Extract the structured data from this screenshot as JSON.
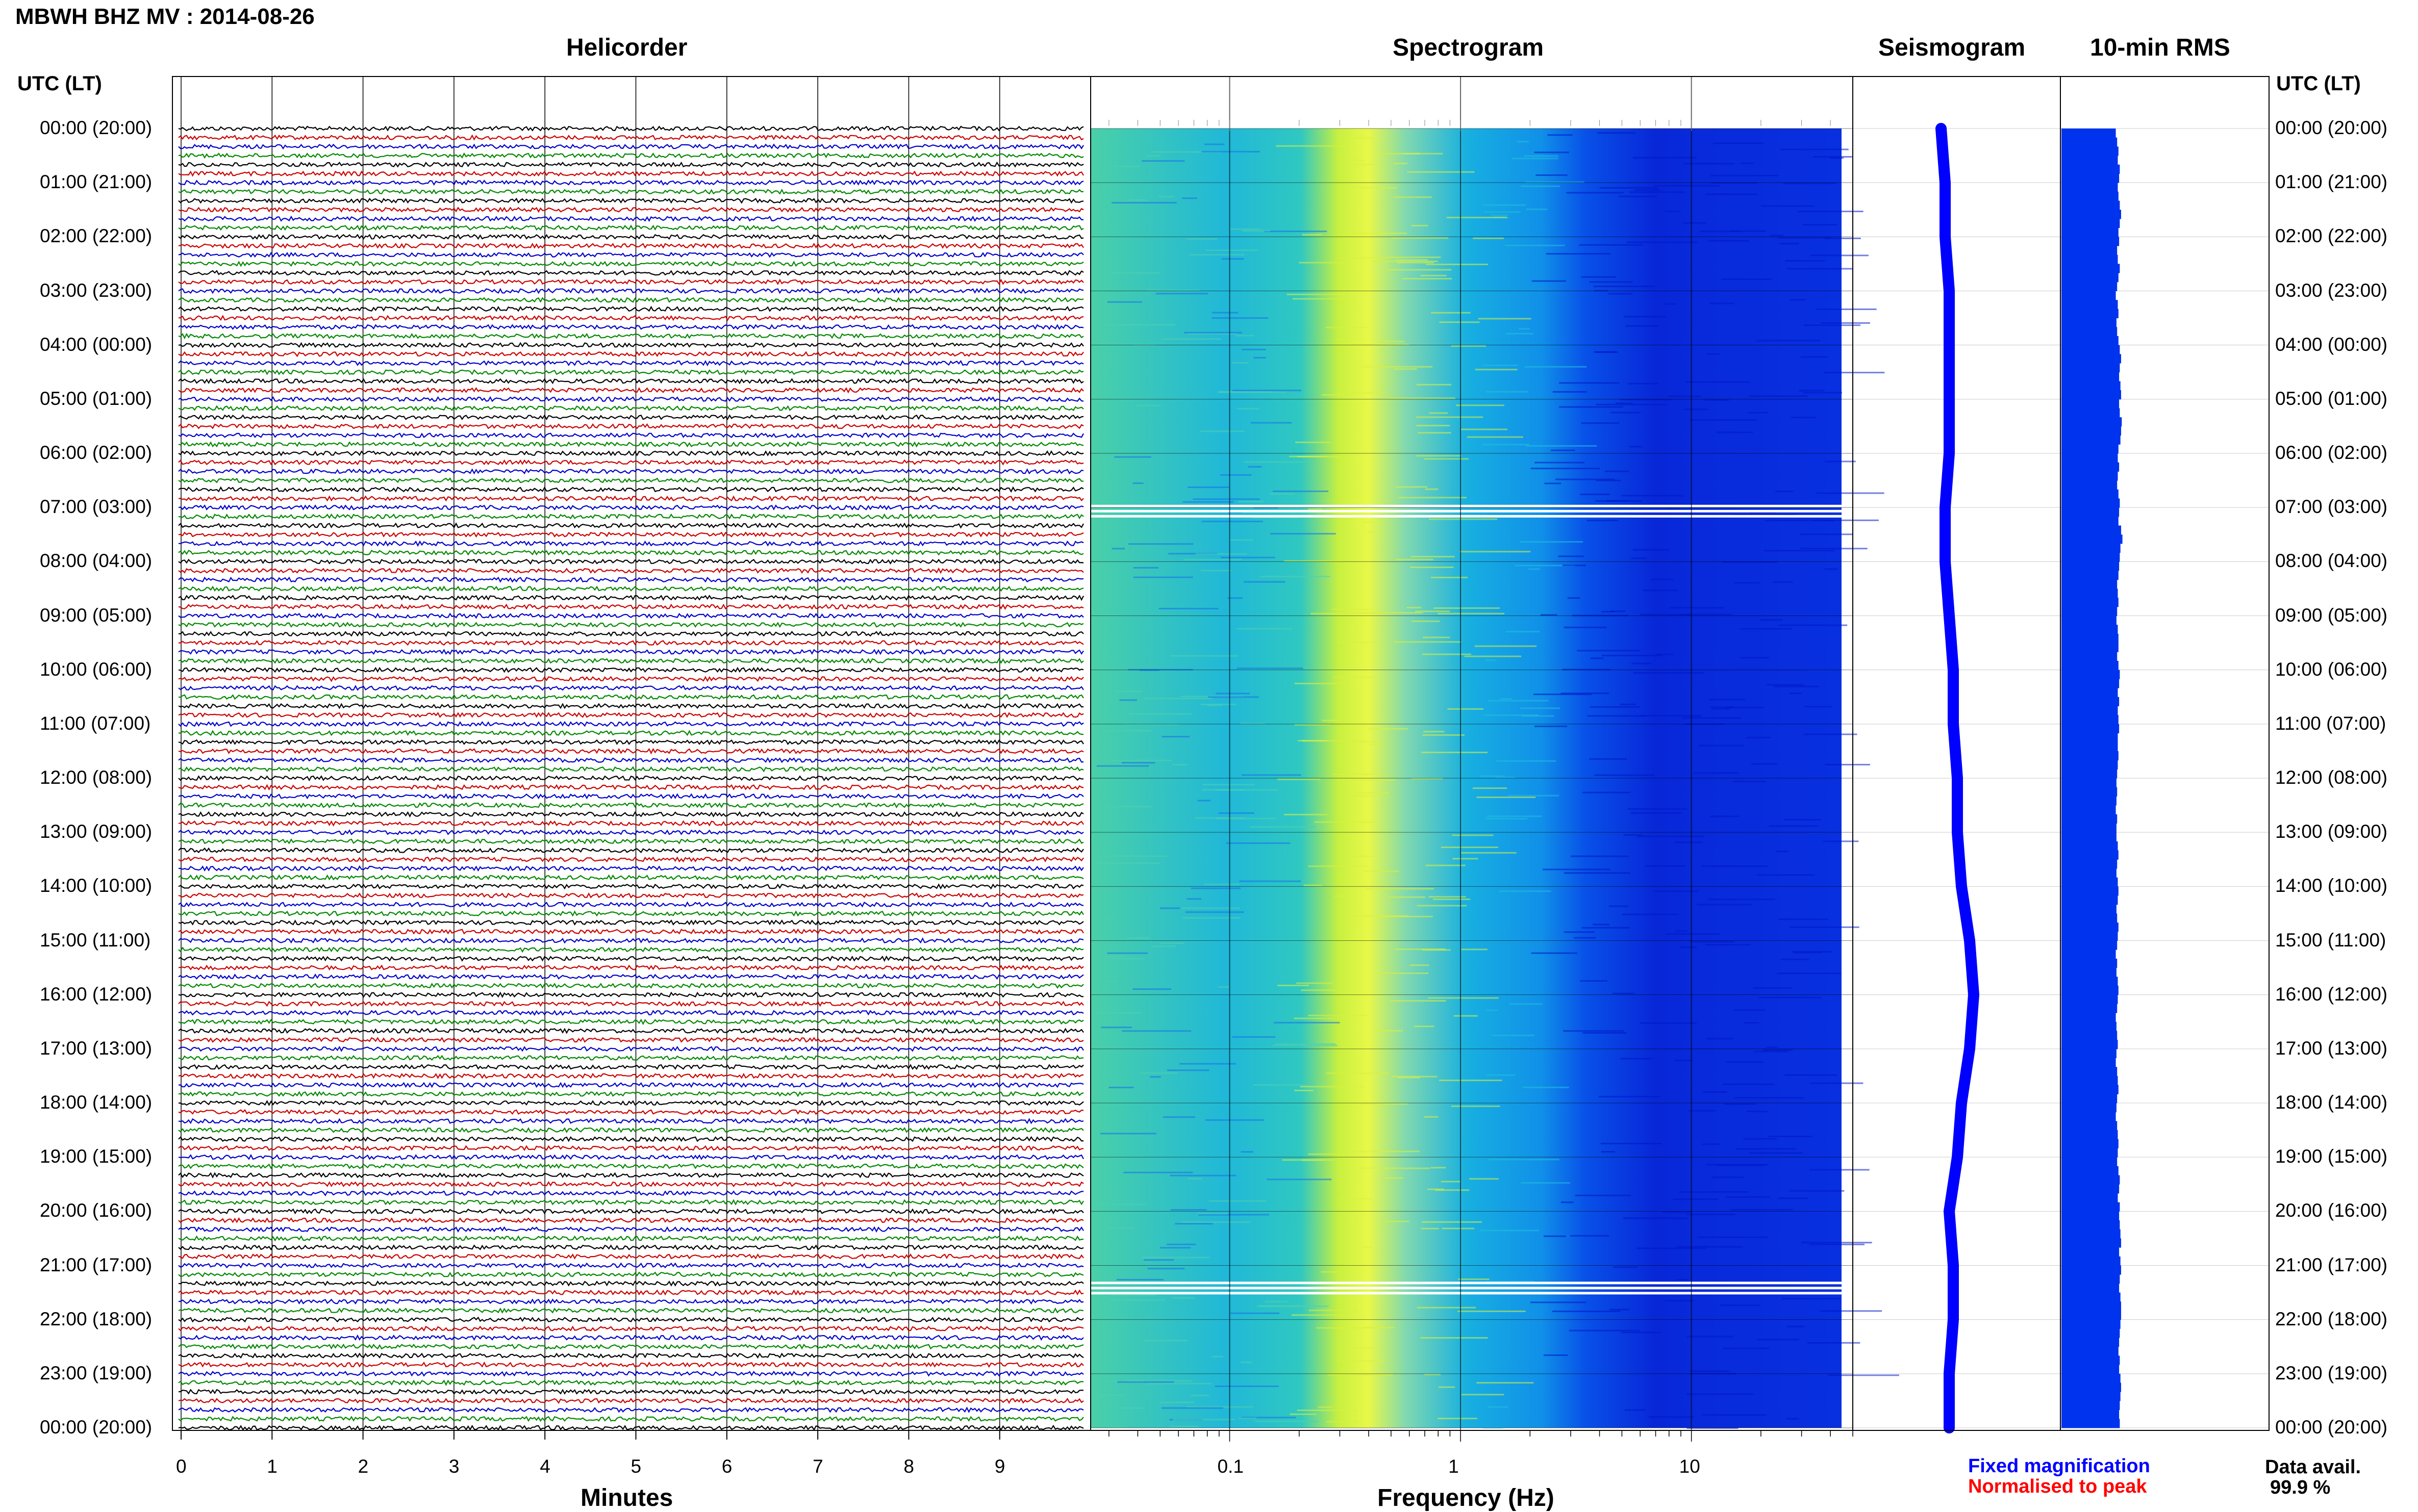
{
  "title": "MBWH BHZ MV : 2014-08-26",
  "headers": {
    "helicorder": "Helicorder",
    "spectrogram": "Spectrogram",
    "seismogram": "Seismogram",
    "rms": "10-min RMS",
    "utc_left": "UTC (LT)",
    "utc_right": "UTC (LT)"
  },
  "time_labels": [
    "00:00 (20:00)",
    "01:00 (21:00)",
    "02:00 (22:00)",
    "03:00 (23:00)",
    "04:00 (00:00)",
    "05:00 (01:00)",
    "06:00 (02:00)",
    "07:00 (03:00)",
    "08:00 (04:00)",
    "09:00 (05:00)",
    "10:00 (06:00)",
    "11:00 (07:00)",
    "12:00 (08:00)",
    "13:00 (09:00)",
    "14:00 (10:00)",
    "15:00 (11:00)",
    "16:00 (12:00)",
    "17:00 (13:00)",
    "18:00 (14:00)",
    "19:00 (15:00)",
    "20:00 (16:00)",
    "21:00 (17:00)",
    "22:00 (18:00)",
    "23:00 (19:00)",
    "00:00 (20:00)"
  ],
  "legend": {
    "fixed": "Fixed magnification",
    "normalised": "Normalised to peak",
    "fixed_color": "#0000ff",
    "normalised_color": "#ff0000"
  },
  "data_avail": {
    "label": "Data avail.",
    "value": "99.9 %"
  },
  "colors": {
    "trace_cycle": [
      "#000000",
      "#cc0000",
      "#0000cc",
      "#008800"
    ],
    "spectro_low": "#0022dd",
    "spectro_mid": "#22c8d8",
    "spectro_high": "#e0f040",
    "rms_bar": "#0033ee",
    "seismo": "#0000ff"
  },
  "chart_data": [
    {
      "type": "line",
      "panel": "helicorder",
      "xlabel": "Minutes",
      "x_ticks": [
        "0",
        "1",
        "2",
        "3",
        "4",
        "5",
        "6",
        "7",
        "8",
        "9"
      ],
      "xlim": [
        0,
        10
      ],
      "rows_per_hour": 6,
      "hours": 24
    },
    {
      "type": "heatmap",
      "panel": "spectrogram",
      "xlabel": "Frequency (Hz)",
      "x_scale": "log",
      "x_ticks": [
        "0.1",
        "1",
        "10"
      ],
      "xlim": [
        0.025,
        50
      ],
      "gaps_utc_hours": [
        6.95,
        21.3
      ],
      "peak_band_hz": [
        0.25,
        0.45
      ]
    },
    {
      "type": "line",
      "panel": "seismogram",
      "x_offsets": [
        0.0,
        0.01,
        0.01,
        0.02,
        0.02,
        0.02,
        0.02,
        0.01,
        0.01,
        0.02,
        0.03,
        0.03,
        0.04,
        0.04,
        0.05,
        0.07,
        0.08,
        0.07,
        0.05,
        0.04,
        0.02,
        0.03,
        0.03,
        0.02,
        0.02
      ]
    },
    {
      "type": "bar",
      "panel": "rms",
      "orientation": "horizontal",
      "values": [
        0.82,
        0.84,
        0.86,
        0.85,
        0.88,
        0.87,
        0.85,
        0.86,
        0.88,
        0.9,
        0.88,
        0.86,
        0.87,
        0.84,
        0.85,
        0.88,
        0.86,
        0.84,
        0.82,
        0.85,
        0.86,
        0.83,
        0.84,
        0.86,
        0.88,
        0.9,
        0.88,
        0.87,
        0.89,
        0.9,
        0.87,
        0.88,
        0.91,
        0.9,
        0.89,
        0.86,
        0.85,
        0.87,
        0.85,
        0.84,
        0.86,
        0.88,
        0.87,
        0.86,
        0.9,
        0.92,
        0.89,
        0.88,
        0.87,
        0.86,
        0.84,
        0.85,
        0.86,
        0.84,
        0.83,
        0.85,
        0.86,
        0.86,
        0.84,
        0.86,
        0.88,
        0.87,
        0.85,
        0.87,
        0.85,
        0.86,
        0.87,
        0.85,
        0.85,
        0.86,
        0.85,
        0.84,
        0.83,
        0.84,
        0.83,
        0.82,
        0.84,
        0.83,
        0.83,
        0.85,
        0.86,
        0.84,
        0.83,
        0.85,
        0.86,
        0.85,
        0.83,
        0.84,
        0.86,
        0.85,
        0.84,
        0.82,
        0.84,
        0.83,
        0.85,
        0.86,
        0.85,
        0.84,
        0.82,
        0.83,
        0.84,
        0.85,
        0.83,
        0.82,
        0.84,
        0.85,
        0.86,
        0.84,
        0.83,
        0.82,
        0.84,
        0.85,
        0.86,
        0.85,
        0.84,
        0.86,
        0.88,
        0.87,
        0.85,
        0.88,
        0.87,
        0.88,
        0.89,
        0.9,
        0.87,
        0.89,
        0.9,
        0.88,
        0.87,
        0.89,
        0.9,
        0.9,
        0.89,
        0.88,
        0.87,
        0.86,
        0.88,
        0.87,
        0.89,
        0.9,
        0.89,
        0.88,
        0.87,
        0.88
      ]
    }
  ]
}
